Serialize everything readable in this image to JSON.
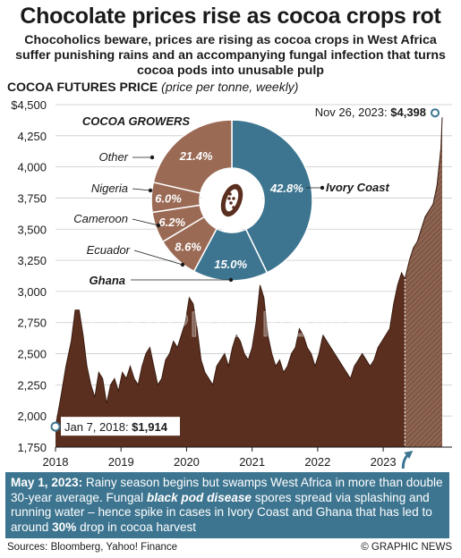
{
  "header": {
    "title": "Chocolate prices rise as cocoa crops rot",
    "subtitle": "Chocoholics beware, prices are rising as cocoa crops in West Africa suffer punishing rains and an accompanying fungal infection that turns cocoa pods into unusable pulp",
    "section_title": "COCOA FUTURES PRICE",
    "section_subtitle": "(price per tonne, weekly)"
  },
  "colors": {
    "area_fill": "#5a2f1f",
    "highlight_fill": "#8d6452",
    "teal": "#3d7590",
    "pie_brown": "#9a6a55",
    "gridline": "#c9c9c9"
  },
  "chart_data": [
    {
      "type": "area",
      "ylim": [
        1750,
        4500
      ],
      "yticks": [
        "$4,500",
        "4,250",
        "4,000",
        "3,750",
        "3,500",
        "3,250",
        "3,000",
        "2,750",
        "2,500",
        "2,250",
        "2,000",
        "1,750"
      ],
      "ytick_values": [
        4500,
        4250,
        4000,
        3750,
        3500,
        3250,
        3000,
        2750,
        2500,
        2250,
        2000,
        1750
      ],
      "xticks": [
        "2018",
        "2019",
        "2020",
        "2021",
        "2022",
        "2023"
      ],
      "xtick_values": [
        2018,
        2019,
        2020,
        2021,
        2022,
        2023
      ],
      "xlim": [
        2018,
        2024.05
      ],
      "highlight_from": 2023.33,
      "series": [
        {
          "x": [
            2018.0,
            2018.08,
            2018.16,
            2018.24,
            2018.3,
            2018.36,
            2018.42,
            2018.48,
            2018.54,
            2018.6,
            2018.66,
            2018.72,
            2018.78,
            2018.84,
            2018.9,
            2018.96,
            2019.02,
            2019.08,
            2019.14,
            2019.2,
            2019.26,
            2019.32,
            2019.38,
            2019.44,
            2019.5,
            2019.56,
            2019.62,
            2019.68,
            2019.74,
            2019.8,
            2019.86,
            2019.92,
            2019.98,
            2020.04,
            2020.1,
            2020.16,
            2020.22,
            2020.28,
            2020.34,
            2020.4,
            2020.46,
            2020.52,
            2020.58,
            2020.64,
            2020.7,
            2020.76,
            2020.82,
            2020.88,
            2020.94,
            2021.0,
            2021.06,
            2021.12,
            2021.18,
            2021.24,
            2021.3,
            2021.36,
            2021.42,
            2021.48,
            2021.54,
            2021.6,
            2021.66,
            2021.72,
            2021.78,
            2021.84,
            2021.9,
            2021.96,
            2022.02,
            2022.08,
            2022.14,
            2022.2,
            2022.26,
            2022.32,
            2022.38,
            2022.44,
            2022.5,
            2022.56,
            2022.62,
            2022.68,
            2022.74,
            2022.8,
            2022.86,
            2022.92,
            2022.98,
            2023.04,
            2023.1,
            2023.16,
            2023.22,
            2023.28,
            2023.33,
            2023.4,
            2023.46,
            2023.52,
            2023.58,
            2023.64,
            2023.7,
            2023.76,
            2023.82,
            2023.88,
            2023.9
          ],
          "y": [
            1914,
            2150,
            2400,
            2600,
            2850,
            2850,
            2650,
            2400,
            2250,
            2150,
            2350,
            2300,
            2100,
            2250,
            2300,
            2200,
            2350,
            2300,
            2400,
            2300,
            2250,
            2400,
            2500,
            2550,
            2400,
            2250,
            2300,
            2450,
            2500,
            2600,
            2550,
            2650,
            2750,
            2950,
            2900,
            2700,
            2450,
            2350,
            2300,
            2250,
            2400,
            2450,
            2500,
            2400,
            2550,
            2650,
            2600,
            2500,
            2450,
            2550,
            2750,
            3050,
            2950,
            2650,
            2500,
            2400,
            2450,
            2350,
            2400,
            2500,
            2550,
            2700,
            2650,
            2550,
            2500,
            2400,
            2500,
            2650,
            2600,
            2550,
            2500,
            2450,
            2400,
            2350,
            2300,
            2400,
            2450,
            2500,
            2450,
            2400,
            2450,
            2550,
            2600,
            2650,
            2700,
            2900,
            3050,
            3150,
            3100,
            3250,
            3350,
            3400,
            3500,
            3600,
            3650,
            3700,
            3850,
            4150,
            4398
          ]
        }
      ],
      "annotations": [
        {
          "label": "Jan 7, 2018:",
          "value": "$1,914",
          "x": 2018.0,
          "y": 1914
        },
        {
          "label": "Nov 26, 2023:",
          "value": "$4,398",
          "x": 2023.9,
          "y": 4398
        }
      ]
    },
    {
      "type": "pie",
      "title": "COCOA GROWERS",
      "slices": [
        {
          "name": "Ivory Coast",
          "label": "42.8%",
          "value": 42.8
        },
        {
          "name": "Ghana",
          "label": "15.0%",
          "value": 15.0
        },
        {
          "name": "Ecuador",
          "label": "8.6%",
          "value": 8.6
        },
        {
          "name": "Cameroon",
          "label": "6.2%",
          "value": 6.2
        },
        {
          "name": "Nigeria",
          "label": "6.0%",
          "value": 6.0
        },
        {
          "name": "Other",
          "label": "21.4%",
          "value": 21.4
        }
      ]
    }
  ],
  "note": {
    "date": "May 1, 2023:",
    "text1": " Rainy season begins but swamps West Africa in more than double 30-year average. Fungal ",
    "emphasis": "black pod disease",
    "text2": " spores spread via splashing and running water – hence spike in cases in Ivory Coast and Ghana that has led to around ",
    "percent": "30%",
    "text3": " drop in cocoa harvest"
  },
  "footer": {
    "sources": "Sources: Bloomberg, Yahoo! Finance",
    "copyright": "© GRAPHIC NEWS"
  },
  "watermark": "GRAPHIC NEWS"
}
